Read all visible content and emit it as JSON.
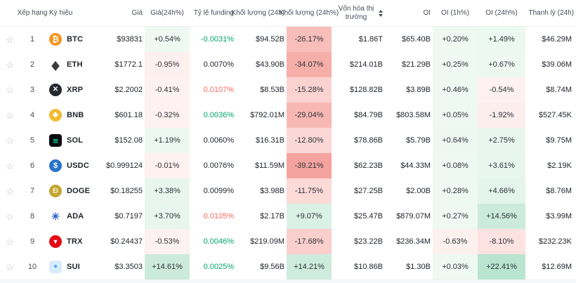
{
  "colors": {
    "heat_green_rgb": "35,170,105",
    "heat_red_rgb": "235,72,62",
    "funding_green": "#03a66d",
    "funding_red": "#f6685e",
    "text_dark": "#1e2329",
    "header_gray": "#474d57"
  },
  "columns": [
    {
      "key": "star",
      "label": "",
      "type": "star",
      "align": "center",
      "name": "star-cell"
    },
    {
      "key": "rank",
      "label": "Xếp hạng",
      "type": "rank",
      "align": "center",
      "name": "rank-cell"
    },
    {
      "key": "symbol",
      "label": "Ký hiệu",
      "type": "coin",
      "align": "left",
      "name": "symbol-cell"
    },
    {
      "key": "price",
      "label": "Giá",
      "type": "text",
      "align": "right",
      "name": "price-cell"
    },
    {
      "key": "price_chg",
      "label": "Giá(24h%)",
      "type": "heat",
      "align": "center",
      "name": "price-change-cell"
    },
    {
      "key": "funding",
      "label": "Tỷ lệ funding",
      "type": "fund",
      "align": "right",
      "name": "funding-rate-cell"
    },
    {
      "key": "vol",
      "label": "Khối lượng (24h)",
      "type": "text",
      "align": "right",
      "name": "volume-cell"
    },
    {
      "key": "vol_chg",
      "label": "Khối lượng (24h%)",
      "type": "heat",
      "align": "center",
      "name": "volume-change-cell"
    },
    {
      "key": "mcap",
      "label": "Vốn hóa thị trường",
      "type": "text",
      "align": "right",
      "name": "market-cap-cell",
      "sortable": true,
      "wrap": true
    },
    {
      "key": "oi",
      "label": "OI",
      "type": "text",
      "align": "right",
      "name": "oi-cell"
    },
    {
      "key": "oi_1h",
      "label": "OI (1h%)",
      "type": "heat",
      "align": "center",
      "name": "oi-1h-change-cell"
    },
    {
      "key": "oi_24h",
      "label": "OI (24h%)",
      "type": "heat",
      "align": "center",
      "name": "oi-24h-change-cell"
    },
    {
      "key": "liq",
      "label": "Thanh lý (24h)",
      "type": "text",
      "align": "right",
      "name": "liquidation-cell",
      "pad": true
    }
  ],
  "rows": [
    {
      "rank": "1",
      "symbol": "BTC",
      "icon": {
        "glyph": "₿",
        "bg": "#F7931A",
        "fg": "#ffffff",
        "shape": "circle",
        "size": 12
      },
      "price": "$93831",
      "price_chg": {
        "text": "+0.54%",
        "v": 0.54
      },
      "funding": {
        "text": "-0.0031%",
        "color": "green"
      },
      "vol": "$94.52B",
      "vol_chg": {
        "text": "-26.17%",
        "v": -26.17
      },
      "mcap": "$1.86T",
      "oi": "$65.40B",
      "oi_1h": {
        "text": "+0.20%",
        "v": 0.2
      },
      "oi_24h": {
        "text": "+1.49%",
        "v": 1.49
      },
      "liq": "$46.29M"
    },
    {
      "rank": "2",
      "symbol": "ETH",
      "icon": {
        "glyph": "◆",
        "bg": "transparent",
        "fg": "#3c3c3d",
        "shape": "circle",
        "size": 14
      },
      "price": "$1772.1",
      "price_chg": {
        "text": "-0.95%",
        "v": -0.95
      },
      "funding": {
        "text": "0.0070%",
        "color": "default"
      },
      "vol": "$43.90B",
      "vol_chg": {
        "text": "-34.07%",
        "v": -34.07
      },
      "mcap": "$214.01B",
      "oi": "$21.29B",
      "oi_1h": {
        "text": "+0.25%",
        "v": 0.25
      },
      "oi_24h": {
        "text": "+0.67%",
        "v": 0.67
      },
      "liq": "$39.06M"
    },
    {
      "rank": "3",
      "symbol": "XRP",
      "icon": {
        "glyph": "✕",
        "bg": "#23292F",
        "fg": "#ffffff",
        "shape": "circle",
        "size": 10
      },
      "price": "$2.2002",
      "price_chg": {
        "text": "-0.41%",
        "v": -0.41
      },
      "funding": {
        "text": "0.0107%",
        "color": "red"
      },
      "vol": "$8.53B",
      "vol_chg": {
        "text": "-15.28%",
        "v": -15.28
      },
      "mcap": "$128.82B",
      "oi": "$3.89B",
      "oi_1h": {
        "text": "+0.46%",
        "v": 0.46
      },
      "oi_24h": {
        "text": "-0.54%",
        "v": -0.54
      },
      "liq": "$8.74M"
    },
    {
      "rank": "4",
      "symbol": "BNB",
      "icon": {
        "glyph": "◆",
        "bg": "#F3BA2F",
        "fg": "#ffffff",
        "shape": "circle",
        "size": 10
      },
      "price": "$601.18",
      "price_chg": {
        "text": "-0.32%",
        "v": -0.32
      },
      "funding": {
        "text": "0.0036%",
        "color": "green"
      },
      "vol": "$792.01M",
      "vol_chg": {
        "text": "-29.04%",
        "v": -29.04
      },
      "mcap": "$84.79B",
      "oi": "$803.58M",
      "oi_1h": {
        "text": "+0.05%",
        "v": 0.05
      },
      "oi_24h": {
        "text": "-1.92%",
        "v": -1.92
      },
      "liq": "$527.45K"
    },
    {
      "rank": "5",
      "symbol": "SOL",
      "icon": {
        "glyph": "≡",
        "bg": "#0b0b0f",
        "fg": "#00ffa3",
        "shape": "square",
        "size": 13,
        "variant": "SOL"
      },
      "price": "$152.08",
      "price_chg": {
        "text": "+1.19%",
        "v": 1.19
      },
      "funding": {
        "text": "0.0060%",
        "color": "default"
      },
      "vol": "$16.31B",
      "vol_chg": {
        "text": "-12.80%",
        "v": -12.8
      },
      "mcap": "$78.86B",
      "oi": "$5.79B",
      "oi_1h": {
        "text": "+0.64%",
        "v": 0.64
      },
      "oi_24h": {
        "text": "+2.75%",
        "v": 2.75
      },
      "liq": "$9.75M"
    },
    {
      "rank": "6",
      "symbol": "USDC",
      "icon": {
        "glyph": "$",
        "bg": "#2775CA",
        "fg": "#ffffff",
        "shape": "circle",
        "size": 11
      },
      "price": "$0.999124",
      "price_chg": {
        "text": "-0.01%",
        "v": -0.01
      },
      "funding": {
        "text": "0.0076%",
        "color": "default"
      },
      "vol": "$11.59M",
      "vol_chg": {
        "text": "-39.21%",
        "v": -39.21
      },
      "mcap": "$62.23B",
      "oi": "$44.33M",
      "oi_1h": {
        "text": "+0.08%",
        "v": 0.08
      },
      "oi_24h": {
        "text": "+3.61%",
        "v": 3.61
      },
      "liq": "$2.19K"
    },
    {
      "rank": "7",
      "symbol": "DOGE",
      "icon": {
        "glyph": "Ð",
        "bg": "#C2A633",
        "fg": "#f8ecc3",
        "shape": "circle",
        "size": 11
      },
      "price": "$0.18255",
      "price_chg": {
        "text": "+3.38%",
        "v": 3.38
      },
      "funding": {
        "text": "0.0099%",
        "color": "default"
      },
      "vol": "$3.98B",
      "vol_chg": {
        "text": "-11.75%",
        "v": -11.75
      },
      "mcap": "$27.25B",
      "oi": "$2.00B",
      "oi_1h": {
        "text": "+0.28%",
        "v": 0.28
      },
      "oi_24h": {
        "text": "+4.66%",
        "v": 4.66
      },
      "liq": "$8.76M"
    },
    {
      "rank": "8",
      "symbol": "ADA",
      "icon": {
        "glyph": "✳",
        "bg": "transparent",
        "fg": "#2a5ccc",
        "shape": "circle",
        "size": 14
      },
      "price": "$0.7197",
      "price_chg": {
        "text": "+3.70%",
        "v": 3.7
      },
      "funding": {
        "text": "0.0105%",
        "color": "red"
      },
      "vol": "$2.17B",
      "vol_chg": {
        "text": "+9.07%",
        "v": 9.07
      },
      "mcap": "$25.47B",
      "oi": "$879.07M",
      "oi_1h": {
        "text": "+0.27%",
        "v": 0.27
      },
      "oi_24h": {
        "text": "+14.56%",
        "v": 14.56
      },
      "liq": "$3.99M"
    },
    {
      "rank": "9",
      "symbol": "TRX",
      "icon": {
        "glyph": "▼",
        "bg": "#E50915",
        "fg": "#ffffff",
        "shape": "circle",
        "size": 9
      },
      "price": "$0.24437",
      "price_chg": {
        "text": "-0.53%",
        "v": -0.53
      },
      "funding": {
        "text": "0.0046%",
        "color": "green"
      },
      "vol": "$219.09M",
      "vol_chg": {
        "text": "-17.68%",
        "v": -17.68
      },
      "mcap": "$23.22B",
      "oi": "$236.34M",
      "oi_1h": {
        "text": "-0.63%",
        "v": -0.63
      },
      "oi_24h": {
        "text": "-8.10%",
        "v": -8.1
      },
      "liq": "$232.23K"
    },
    {
      "rank": "10",
      "symbol": "SUI",
      "icon": {
        "glyph": "●",
        "bg": "#d9ecfd",
        "fg": "#4ca3ff",
        "shape": "square",
        "size": 10
      },
      "price": "$3.3503",
      "price_chg": {
        "text": "+14.61%",
        "v": 14.61
      },
      "funding": {
        "text": "0.0025%",
        "color": "green"
      },
      "vol": "$9.56B",
      "vol_chg": {
        "text": "+14.21%",
        "v": 14.21
      },
      "mcap": "$10.86B",
      "oi": "$1.30B",
      "oi_1h": {
        "text": "+0.03%",
        "v": 0.03
      },
      "oi_24h": {
        "text": "+22.41%",
        "v": 22.41
      },
      "liq": "$12.69M"
    }
  ],
  "icons": {
    "star": "☆",
    "sort": "sort-icon"
  }
}
